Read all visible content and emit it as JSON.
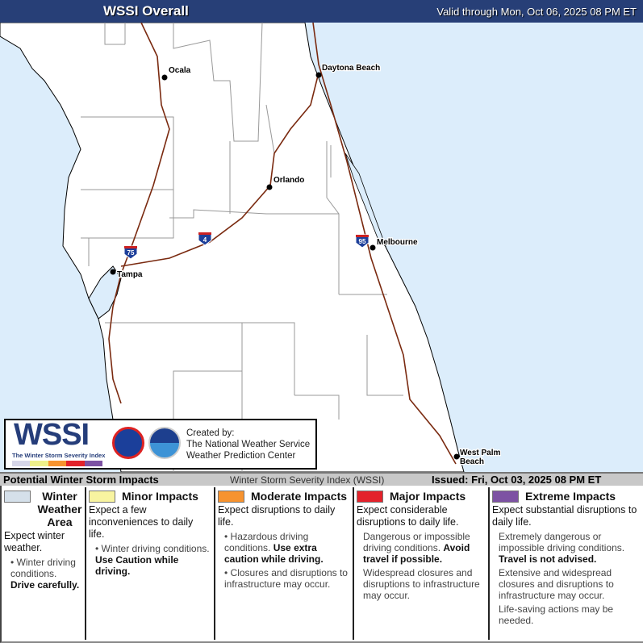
{
  "header": {
    "title": "WSSI Overall",
    "valid": "Valid through Mon, Oct 06, 2025 08 PM ET"
  },
  "map": {
    "colors": {
      "water": "#dcedfb",
      "land": "#ffffff",
      "interstate": "#7a2a10"
    },
    "cities": [
      {
        "name": "Ocala"
      },
      {
        "name": "Daytona Beach"
      },
      {
        "name": "Orlando"
      },
      {
        "name": "Melbourne"
      },
      {
        "name": "Tampa"
      },
      {
        "name": "West Palm Beach"
      }
    ],
    "shields": [
      "75",
      "4",
      "95"
    ]
  },
  "logo": {
    "wssi": "WSSI",
    "subtitle": "The Winter Storm Severity Index",
    "created_by": "Created by:",
    "org1": "The National Weather Service",
    "org2": "Weather Prediction Center"
  },
  "band": {
    "left": "Potential Winter Storm Impacts",
    "middle": "Winter Storm Severity Index (WSSI)",
    "right": "Issued: Fri, Oct 03, 2025 08 PM ET"
  },
  "legend": [
    {
      "label": "Winter Weather Area",
      "color": "#d5e0ea",
      "expect": "Expect winter weather.",
      "b1": "Winter driving conditions.",
      "b1s": "Drive carefully.",
      "b2": "",
      "b3": ""
    },
    {
      "label": "Minor Impacts",
      "color": "#f8f4a0",
      "expect": "Expect a few inconveniences to daily life.",
      "b1": "Winter driving conditions.",
      "b1s": "Use Caution while driving.",
      "b2": "",
      "b3": ""
    },
    {
      "label": "Moderate Impacts",
      "color": "#f7932f",
      "expect": "Expect disruptions to daily life.",
      "b1": "Hazardous driving conditions.",
      "b1s": "Use extra caution while driving.",
      "b2": "Closures and disruptions to infrastructure may occur.",
      "b3": ""
    },
    {
      "label": "Major Impacts",
      "color": "#e3222b",
      "expect": "Expect considerable disruptions to daily life.",
      "b1": "Dangerous or impossible driving conditions.",
      "b1s": "Avoid travel if possible.",
      "b2": "Widespread closures and disruptions to infrastructure may occur.",
      "b3": ""
    },
    {
      "label": "Extreme Impacts",
      "color": "#7d52a3",
      "expect": "Expect substantial disruptions to daily life.",
      "b1": "Extremely dangerous or impossible driving conditions.",
      "b1s": "Travel is not advised.",
      "b2": "Extensive and widespread closures and disruptions to infrastructure may occur.",
      "b3": "Life-saving actions may be needed."
    }
  ]
}
